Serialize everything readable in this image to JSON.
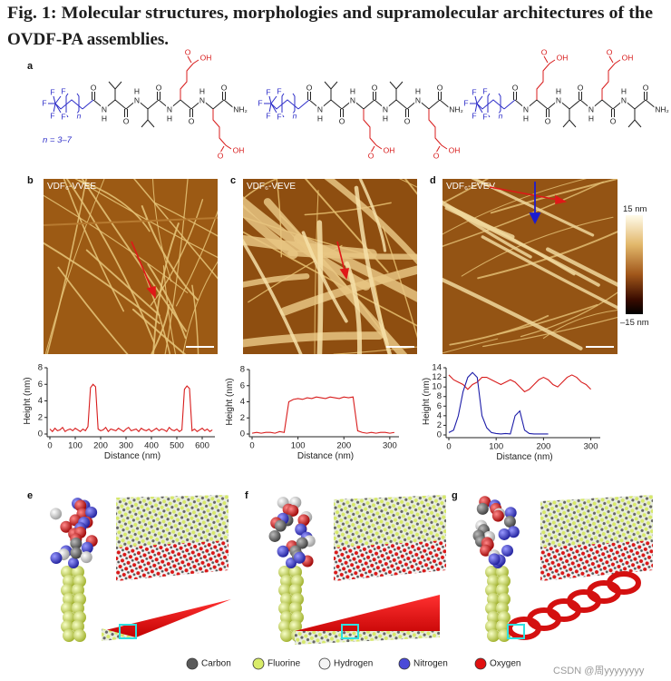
{
  "figure": {
    "title_lines": [
      "Fig. 1: Molecular structures, morphologies and supramolecular architectures of the",
      "OVDF-PA assemblies."
    ],
    "panel_labels": [
      "a",
      "b",
      "c",
      "d",
      "e",
      "f",
      "g"
    ],
    "molecules": [
      {
        "atoms": [
          "F",
          "F",
          "F",
          "F",
          "F",
          "n",
          "O",
          "N",
          "H",
          "O",
          "N",
          "H",
          "O",
          "N",
          "H",
          "O",
          "N",
          "H",
          "O",
          "NH₂",
          "O",
          "OH",
          "O",
          "OH"
        ]
      },
      {
        "atoms": [
          "F",
          "F",
          "F",
          "F",
          "F",
          "n",
          "O",
          "N",
          "H",
          "O",
          "N",
          "H",
          "O",
          "N",
          "H",
          "O",
          "N",
          "H",
          "O",
          "NH₂",
          "O",
          "OH",
          "O",
          "OH"
        ]
      },
      {
        "atoms": [
          "F",
          "F",
          "F",
          "F",
          "F",
          "n",
          "O",
          "N",
          "H",
          "O",
          "N",
          "H",
          "O",
          "N",
          "H",
          "O",
          "N",
          "H",
          "O",
          "NH₂",
          "O",
          "OH",
          "O",
          "OH"
        ]
      }
    ],
    "n_range": "n = 3–7",
    "afm_labels": [
      "VDF₆-VVEE",
      "VDF₆-VEVE",
      "VDF₆-EVEV"
    ],
    "colorbar": {
      "max": "15 nm",
      "min": "–15 nm"
    },
    "legend": [
      {
        "name": "Carbon",
        "color": "#5a5a5a"
      },
      {
        "name": "Fluorine",
        "color": "#d9ec6a"
      },
      {
        "name": "Hydrogen",
        "color": "#f4f4f4"
      },
      {
        "name": "Nitrogen",
        "color": "#4a4ad8"
      },
      {
        "name": "Oxygen",
        "color": "#e01010"
      }
    ],
    "watermark": "CSDN @周yyyyyyyy"
  },
  "chart_data": [
    {
      "type": "line",
      "xlabel": "Distance (nm)",
      "ylabel": "Height (nm)",
      "x": [
        0,
        10,
        20,
        30,
        40,
        50,
        60,
        70,
        80,
        90,
        100,
        110,
        120,
        130,
        140,
        150,
        160,
        170,
        180,
        190,
        200,
        210,
        220,
        230,
        240,
        250,
        260,
        270,
        280,
        290,
        300,
        310,
        320,
        330,
        340,
        350,
        360,
        370,
        380,
        390,
        400,
        410,
        420,
        430,
        440,
        450,
        460,
        470,
        480,
        490,
        500,
        510,
        520,
        530,
        540,
        550,
        560,
        570,
        580,
        590,
        600,
        610,
        620,
        630,
        640
      ],
      "series": [
        {
          "color": "#d81c1c",
          "values": [
            0.6,
            0.3,
            0.7,
            0.4,
            0.5,
            0.8,
            0.3,
            0.5,
            0.6,
            0.4,
            0.7,
            0.5,
            0.3,
            0.6,
            0.4,
            0.9,
            5.6,
            6.0,
            5.7,
            0.6,
            0.4,
            0.5,
            0.8,
            0.3,
            0.6,
            0.5,
            0.4,
            0.7,
            0.5,
            0.3,
            0.6,
            0.8,
            0.4,
            0.5,
            0.6,
            0.3,
            0.7,
            0.5,
            0.4,
            0.6,
            0.3,
            0.5,
            0.7,
            0.4,
            0.6,
            0.5,
            0.3,
            0.8,
            0.5,
            0.4,
            0.6,
            0.3,
            0.5,
            5.4,
            5.8,
            5.5,
            0.4,
            0.6,
            0.3,
            0.5,
            0.7,
            0.4,
            0.6,
            0.3,
            0.5
          ]
        }
      ],
      "xlim": [
        0,
        650
      ],
      "xticks": [
        0,
        100,
        200,
        300,
        400,
        500,
        600
      ],
      "ylim": [
        0,
        8
      ],
      "yticks": [
        0,
        2,
        4,
        6,
        8
      ]
    },
    {
      "type": "line",
      "xlabel": "Distance (nm)",
      "ylabel": "Height (nm)",
      "x": [
        0,
        10,
        20,
        30,
        40,
        50,
        60,
        70,
        80,
        90,
        100,
        110,
        120,
        130,
        140,
        150,
        160,
        170,
        180,
        190,
        200,
        210,
        220,
        230,
        240,
        250,
        260,
        270,
        280,
        290,
        300,
        310
      ],
      "series": [
        {
          "color": "#d81c1c",
          "values": [
            0.1,
            0.2,
            0.1,
            0.2,
            0.2,
            0.1,
            0.3,
            0.2,
            4.0,
            4.3,
            4.4,
            4.3,
            4.5,
            4.4,
            4.6,
            4.5,
            4.4,
            4.6,
            4.5,
            4.4,
            4.6,
            4.5,
            4.6,
            0.4,
            0.2,
            0.1,
            0.2,
            0.1,
            0.2,
            0.2,
            0.1,
            0.2
          ]
        }
      ],
      "xlim": [
        0,
        320
      ],
      "xticks": [
        0,
        100,
        200,
        300
      ],
      "ylim": [
        0,
        8
      ],
      "yticks": [
        0,
        2,
        4,
        6,
        8
      ]
    },
    {
      "type": "line",
      "xlabel": "Distance (nm)",
      "ylabel": "Height (nm)",
      "x": [
        0,
        10,
        20,
        30,
        40,
        50,
        60,
        70,
        80,
        90,
        100,
        110,
        120,
        130,
        140,
        150,
        160,
        170,
        180,
        190,
        200,
        210,
        220,
        230,
        240,
        250,
        260,
        270,
        280,
        290,
        300
      ],
      "series": [
        {
          "color": "#d81c1c",
          "values": [
            12.5,
            11.5,
            11,
            10.5,
            9.5,
            10.5,
            11,
            12,
            12,
            11.5,
            11,
            10.5,
            11,
            11.5,
            11,
            10,
            9,
            9.5,
            10.5,
            11.5,
            12,
            11.5,
            10.5,
            10,
            11,
            12,
            12.5,
            12,
            11,
            10.5,
            9.5
          ]
        },
        {
          "color": "#1c1ca8",
          "values": [
            0.5,
            1,
            4,
            9,
            12,
            13,
            12,
            4,
            1.5,
            0.5,
            0.3,
            0.2,
            0.3,
            0.2,
            4,
            5,
            1,
            0.3,
            0.2,
            0.2,
            0.2,
            0.2,
            null,
            null,
            null,
            null,
            null,
            null,
            null,
            null,
            null
          ]
        }
      ],
      "xlim": [
        0,
        320
      ],
      "xticks": [
        0,
        100,
        200,
        300
      ],
      "ylim": [
        0,
        14
      ],
      "yticks": [
        0,
        2,
        4,
        6,
        8,
        10,
        12,
        14
      ]
    }
  ]
}
